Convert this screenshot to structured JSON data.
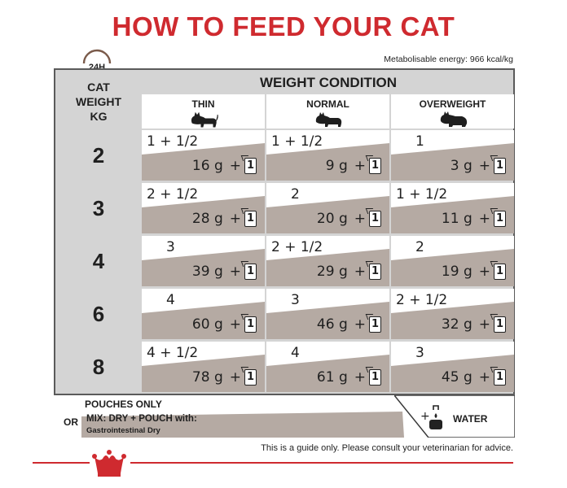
{
  "title": "HOW TO FEED YOUR CAT",
  "clock_label": "24H",
  "energy": "Metabolisable energy: 966 kcal/kg",
  "table": {
    "weight_header": [
      "CAT",
      "WEIGHT",
      "KG"
    ],
    "condition_header": "WEIGHT CONDITION",
    "columns": [
      "THIN",
      "NORMAL",
      "OVERWEIGHT"
    ],
    "rows": [
      {
        "weight": "2",
        "cells": [
          {
            "pouch": "1 + 1/2",
            "grams": "16 g",
            "plus": "+",
            "icon": "1"
          },
          {
            "pouch": "1 + 1/2",
            "grams": "9 g",
            "plus": "+",
            "icon": "1"
          },
          {
            "pouch": "1",
            "grams": "3 g",
            "plus": "+",
            "icon": "1"
          }
        ]
      },
      {
        "weight": "3",
        "cells": [
          {
            "pouch": "2 + 1/2",
            "grams": "28 g",
            "plus": "+",
            "icon": "1"
          },
          {
            "pouch": "2",
            "grams": "20 g",
            "plus": "+",
            "icon": "1"
          },
          {
            "pouch": "1 + 1/2",
            "grams": "11 g",
            "plus": "+",
            "icon": "1"
          }
        ]
      },
      {
        "weight": "4",
        "cells": [
          {
            "pouch": "3",
            "grams": "39 g",
            "plus": "+",
            "icon": "1"
          },
          {
            "pouch": "2 + 1/2",
            "grams": "29 g",
            "plus": "+",
            "icon": "1"
          },
          {
            "pouch": "2",
            "grams": "19 g",
            "plus": "+",
            "icon": "1"
          }
        ]
      },
      {
        "weight": "6",
        "cells": [
          {
            "pouch": "4",
            "grams": "60 g",
            "plus": "+",
            "icon": "1"
          },
          {
            "pouch": "3",
            "grams": "46 g",
            "plus": "+",
            "icon": "1"
          },
          {
            "pouch": "2 + 1/2",
            "grams": "32 g",
            "plus": "+",
            "icon": "1"
          }
        ]
      },
      {
        "weight": "8",
        "cells": [
          {
            "pouch": "4 + 1/2",
            "grams": "78 g",
            "plus": "+",
            "icon": "1"
          },
          {
            "pouch": "4",
            "grams": "61 g",
            "plus": "+",
            "icon": "1"
          },
          {
            "pouch": "3",
            "grams": "45 g",
            "plus": "+",
            "icon": "1"
          }
        ]
      }
    ]
  },
  "legend": {
    "pouches_only": "POUCHES ONLY",
    "or": "OR",
    "mix": "MIX: DRY + POUCH with:",
    "mix_sub": "Gastrointestinal Dry",
    "water": "WATER"
  },
  "disclaimer": "This is a guide only. Please consult your veterinarian for advice.",
  "colors": {
    "brand_red": "#cf2a2f",
    "band": "#b5aaa3",
    "header_grey": "#d4d4d4"
  }
}
